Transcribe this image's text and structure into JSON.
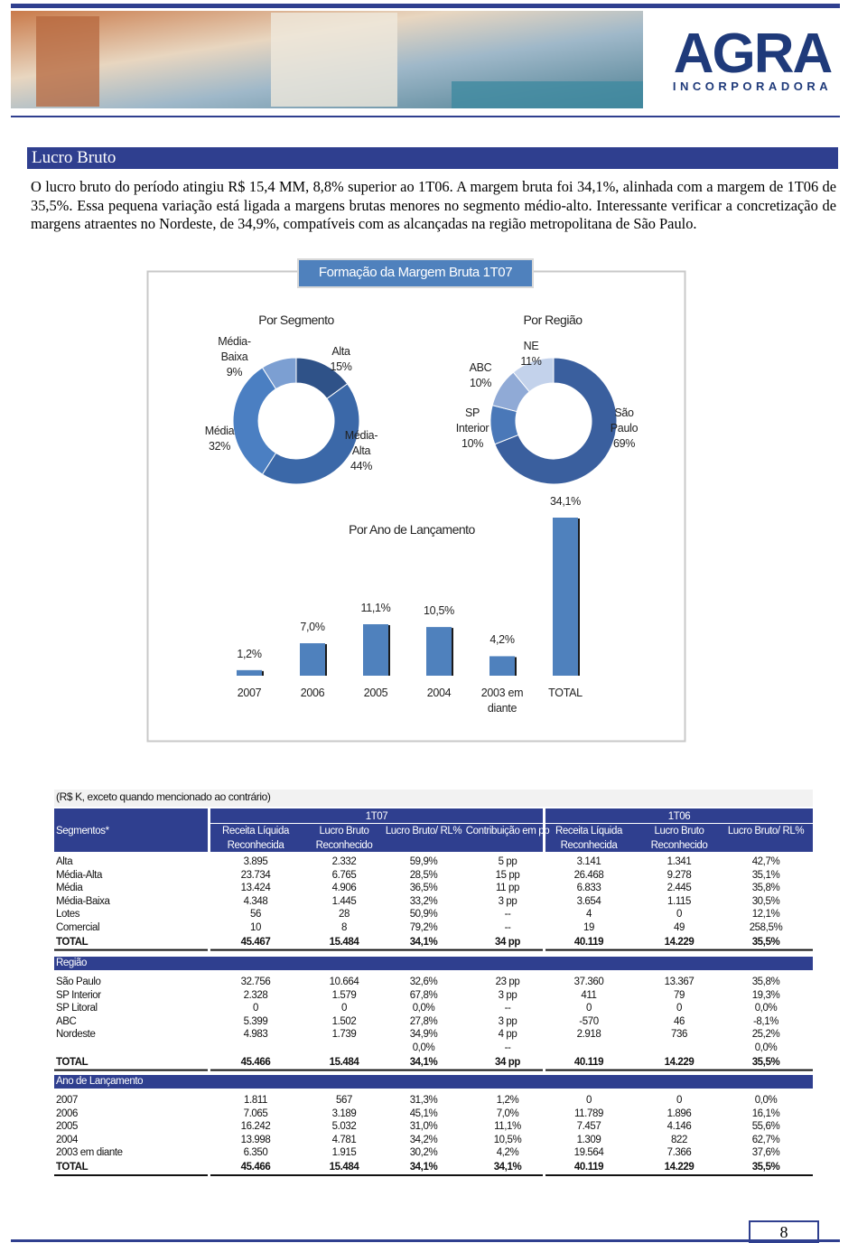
{
  "header": {
    "logo": "AGRA",
    "logo_sub": "INCORPORADORA"
  },
  "section_title": "Lucro Bruto",
  "paragraph": "O lucro bruto do período atingiu R$ 15,4 MM, 8,8% superior ao 1T06. A margem bruta foi 34,1%, alinhada com a margem de 1T06 de 35,5%. Essa pequena variação está ligada a margens brutas menores no segmento médio-alto. Interessante verificar a concretização de margens atraentes no Nordeste, de 34,9%, compatíveis com as alcançadas na região metropolitana de São Paulo.",
  "chart_panel_title": "Formação da Margem Bruta 1T07",
  "chart_data": [
    {
      "type": "donut",
      "title": "Por Segmento",
      "categories": [
        "Alta",
        "Média-Alta",
        "Média",
        "Média-Baixa"
      ],
      "values": [
        15,
        44,
        32,
        9
      ],
      "value_labels": [
        "15%",
        "44%",
        "32%",
        "9%"
      ],
      "colors": [
        "#2f5288",
        "#3b68a8",
        "#4b7fc2",
        "#7c9fd2"
      ]
    },
    {
      "type": "donut",
      "title": "Por Região",
      "categories": [
        "São Paulo",
        "SP Interior",
        "ABC",
        "NE"
      ],
      "values": [
        69,
        10,
        10,
        11
      ],
      "value_labels": [
        "69%",
        "10%",
        "10%",
        "11%"
      ],
      "colors": [
        "#3a5f9e",
        "#4a78b8",
        "#90aad6",
        "#c3d2eb"
      ]
    },
    {
      "type": "bar",
      "title": "Por Ano de Lançamento",
      "categories": [
        "2007",
        "2006",
        "2005",
        "2004",
        "2003 em diante",
        "TOTAL"
      ],
      "values": [
        1.2,
        7.0,
        11.1,
        10.5,
        4.2,
        34.1
      ],
      "value_labels": [
        "1,2%",
        "7,0%",
        "11,1%",
        "10,5%",
        "4,2%",
        "34,1%"
      ],
      "color": "#4f81bd"
    }
  ],
  "table": {
    "caption": "(R$ K, exceto quando mencionado ao contrário)",
    "groups": [
      "1T07",
      "1T06"
    ],
    "columns": [
      "Segmentos*",
      "Receita Líquida Reconhecida",
      "Lucro Bruto Reconhecido",
      "Lucro Bruto/ RL%",
      "Contribuição em pp",
      "Receita Líquida Reconhecida",
      "Lucro Bruto Reconhecido",
      "Lucro Bruto/ RL%"
    ],
    "sections": [
      {
        "rows": [
          [
            "Alta",
            "3.895",
            "2.332",
            "59,9%",
            "5 pp",
            "3.141",
            "1.341",
            "42,7%"
          ],
          [
            "Média-Alta",
            "23.734",
            "6.765",
            "28,5%",
            "15 pp",
            "26.468",
            "9.278",
            "35,1%"
          ],
          [
            "Média",
            "13.424",
            "4.906",
            "36,5%",
            "11 pp",
            "6.833",
            "2.445",
            "35,8%"
          ],
          [
            "Média-Baixa",
            "4.348",
            "1.445",
            "33,2%",
            "3 pp",
            "3.654",
            "1.115",
            "30,5%"
          ],
          [
            "Lotes",
            "56",
            "28",
            "50,9%",
            "--",
            "4",
            "0",
            "12,1%"
          ],
          [
            "Comercial",
            "10",
            "8",
            "79,2%",
            "--",
            "19",
            "49",
            "258,5%"
          ]
        ],
        "total": [
          "TOTAL",
          "45.467",
          "15.484",
          "34,1%",
          "34 pp",
          "40.119",
          "14.229",
          "35,5%"
        ]
      },
      {
        "title": "Região",
        "rows": [
          [
            "São Paulo",
            "32.756",
            "10.664",
            "32,6%",
            "23 pp",
            "37.360",
            "13.367",
            "35,8%"
          ],
          [
            "SP Interior",
            "2.328",
            "1.579",
            "67,8%",
            "3 pp",
            "411",
            "79",
            "19,3%"
          ],
          [
            "SP Litoral",
            "0",
            "0",
            "0,0%",
            "--",
            "0",
            "0",
            "0,0%"
          ],
          [
            "ABC",
            "5.399",
            "1.502",
            "27,8%",
            "3 pp",
            "-570",
            "46",
            "-8,1%"
          ],
          [
            "Nordeste",
            "4.983",
            "1.739",
            "34,9%",
            "4 pp",
            "2.918",
            "736",
            "25,2%"
          ],
          [
            null,
            null,
            null,
            "0,0%",
            "--",
            null,
            null,
            "0,0%"
          ]
        ],
        "total": [
          "TOTAL",
          "45.466",
          "15.484",
          "34,1%",
          "34 pp",
          "40.119",
          "14.229",
          "35,5%"
        ]
      },
      {
        "title": "Ano de Lançamento",
        "rows": [
          [
            "2007",
            "1.811",
            "567",
            "31,3%",
            "1,2%",
            "0",
            "0",
            "0,0%"
          ],
          [
            "2006",
            "7.065",
            "3.189",
            "45,1%",
            "7,0%",
            "11.789",
            "1.896",
            "16,1%"
          ],
          [
            "2005",
            "16.242",
            "5.032",
            "31,0%",
            "11,1%",
            "7.457",
            "4.146",
            "55,6%"
          ],
          [
            "2004",
            "13.998",
            "4.781",
            "34,2%",
            "10,5%",
            "1.309",
            "822",
            "62,7%"
          ],
          [
            "2003 em diante",
            "6.350",
            "1.915",
            "30,2%",
            "4,2%",
            "19.564",
            "7.366",
            "37,6%"
          ]
        ],
        "total": [
          "TOTAL",
          "45.466",
          "15.484",
          "34,1%",
          "34,1%",
          "40.119",
          "14.229",
          "35,5%"
        ]
      }
    ]
  },
  "page_number": "8"
}
